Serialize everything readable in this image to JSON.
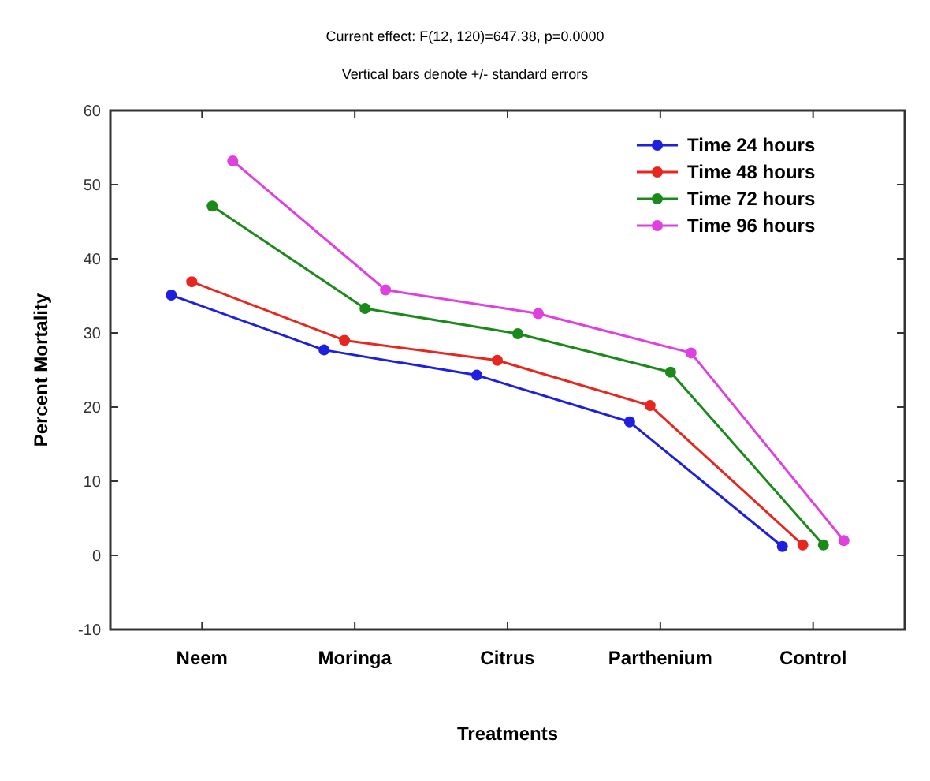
{
  "chart_data": {
    "type": "line",
    "title": "Current effect: F(12, 120)=647.38, p=0.0000",
    "subtitle": "Vertical bars denote +/- standard errors",
    "xlabel": "Treatments",
    "ylabel": "Percent Mortality",
    "categories": [
      "Neem",
      "Moringa",
      "Citrus",
      "Parthenium",
      "Control"
    ],
    "series": [
      {
        "name": "Time 24 hours",
        "color": "#1f1fe0",
        "values": [
          35.1,
          27.7,
          24.3,
          18.0,
          1.2
        ]
      },
      {
        "name": "Time 48 hours",
        "color": "#e8261e",
        "values": [
          36.9,
          29.0,
          26.3,
          20.2,
          1.4
        ]
      },
      {
        "name": "Time 72 hours",
        "color": "#1a8a1a",
        "values": [
          47.1,
          33.3,
          29.9,
          24.7,
          1.4
        ]
      },
      {
        "name": "Time 96 hours",
        "color": "#e040e0",
        "values": [
          53.2,
          35.8,
          32.6,
          27.3,
          2.0
        ]
      }
    ],
    "ylim": [
      -10,
      60
    ],
    "yticks": [
      -10,
      0,
      10,
      20,
      30,
      40,
      50,
      60
    ],
    "grid": false,
    "legend": "top right",
    "marker": "circle",
    "line_style": "solid"
  }
}
